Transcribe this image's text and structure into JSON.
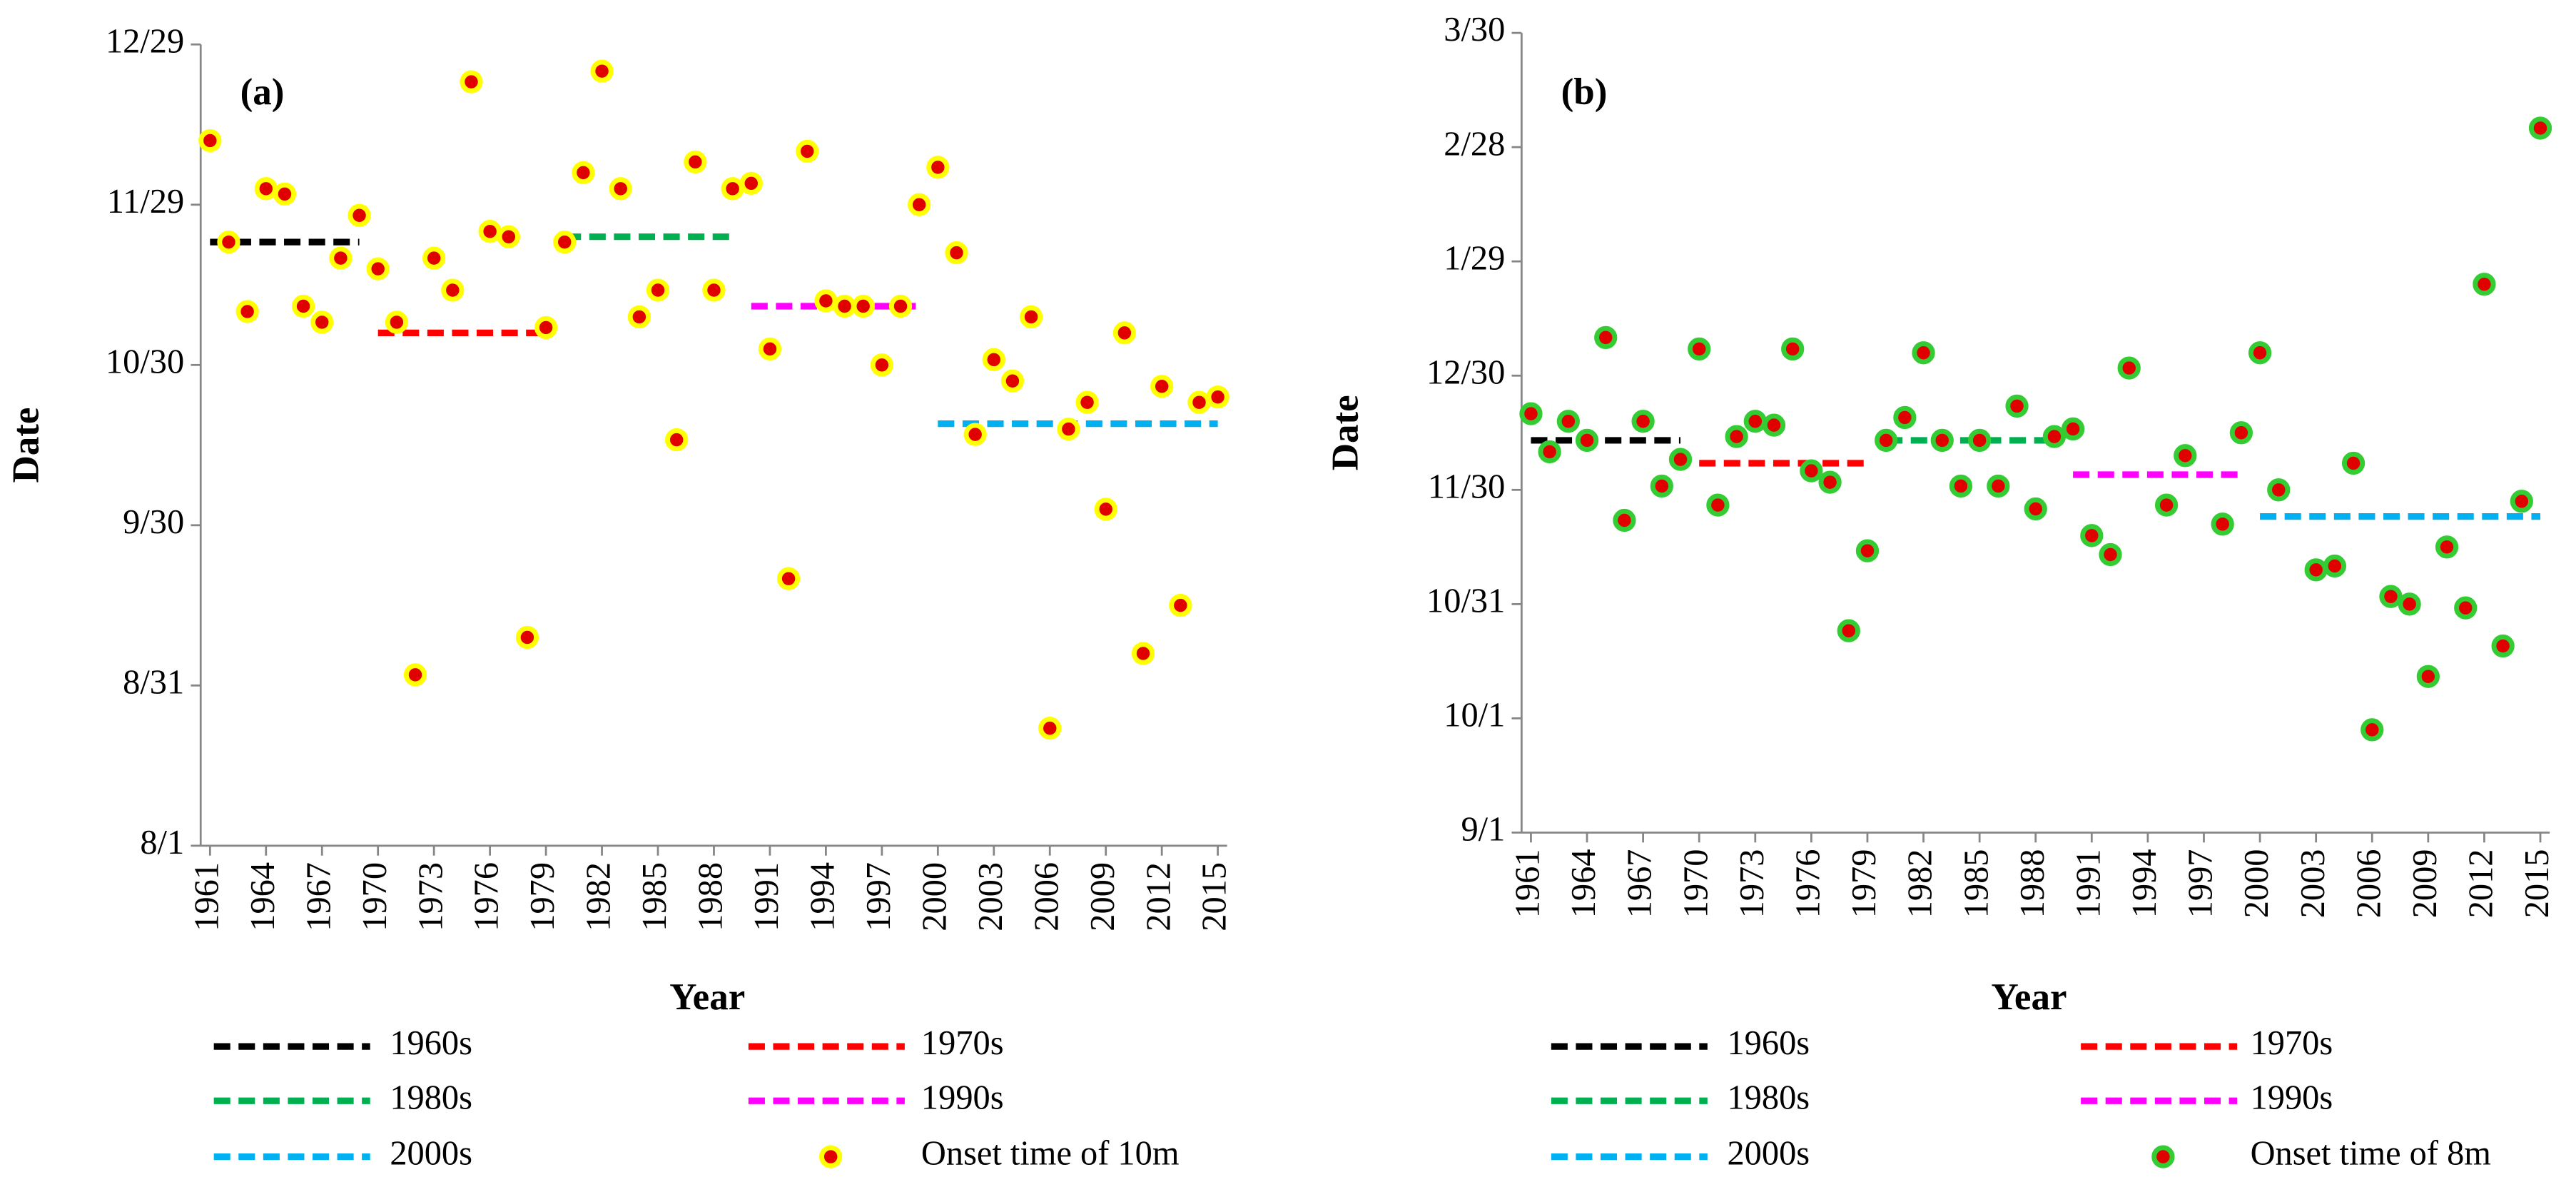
{
  "chart_data": [
    {
      "type": "scatter",
      "annotation": "(a)",
      "xlabel": "Year",
      "ylabel": "Date",
      "x": [
        1961,
        1962,
        1963,
        1964,
        1965,
        1966,
        1967,
        1968,
        1969,
        1970,
        1971,
        1972,
        1973,
        1974,
        1975,
        1976,
        1977,
        1978,
        1979,
        1980,
        1981,
        1982,
        1983,
        1984,
        1985,
        1986,
        1987,
        1988,
        1989,
        1990,
        1991,
        1992,
        1993,
        1994,
        1995,
        1996,
        1997,
        1998,
        1999,
        2000,
        2001,
        2002,
        2003,
        2004,
        2005,
        2006,
        2007,
        2008,
        2009,
        2010,
        2011,
        2012,
        2013,
        2014,
        2015
      ],
      "xlim": [
        1960.5,
        2015.5
      ],
      "xticks": [
        1961,
        1964,
        1967,
        1970,
        1973,
        1976,
        1979,
        1982,
        1985,
        1988,
        1991,
        1994,
        1997,
        2000,
        2003,
        2006,
        2009,
        2012,
        2015
      ],
      "ylim": [
        213,
        363
      ],
      "yticks": [
        {
          "value": 213,
          "label": "8/1"
        },
        {
          "value": 243,
          "label": "8/31"
        },
        {
          "value": 273,
          "label": "9/30"
        },
        {
          "value": 303,
          "label": "10/30"
        },
        {
          "value": 333,
          "label": "11/29"
        },
        {
          "value": 363,
          "label": "12/29"
        }
      ],
      "series": [
        {
          "name": "1960s",
          "mark": "dashed-line",
          "color": "#000000",
          "x": [
            1961,
            1969
          ],
          "values": [
            326,
            326
          ]
        },
        {
          "name": "1970s",
          "mark": "dashed-line",
          "color": "#ff0000",
          "x": [
            1970,
            1979
          ],
          "values": [
            309,
            309
          ]
        },
        {
          "name": "1980s",
          "mark": "dashed-line",
          "color": "#00b050",
          "x": [
            1980,
            1989
          ],
          "values": [
            327,
            327
          ]
        },
        {
          "name": "1990s",
          "mark": "dashed-line",
          "color": "#ff00ff",
          "x": [
            1990,
            1999
          ],
          "values": [
            314,
            314
          ]
        },
        {
          "name": "2000s",
          "mark": "dashed-line",
          "color": "#00b0f0",
          "x": [
            2000,
            2015
          ],
          "values": [
            292,
            292
          ]
        },
        {
          "name": "Onset time of 10m",
          "mark": "marker",
          "color": "#e00000",
          "edgecolor": "#ffff00",
          "values": [
            345,
            326,
            313,
            336,
            335,
            314,
            311,
            323,
            331,
            321,
            311,
            245,
            323,
            317,
            356,
            328,
            327,
            252,
            310,
            326,
            339,
            358,
            336,
            312,
            317,
            289,
            341,
            317,
            336,
            337,
            306,
            263,
            343,
            315,
            314,
            314,
            303,
            314,
            333,
            340,
            324,
            290,
            304,
            300,
            312,
            235,
            291,
            296,
            276,
            309,
            249,
            299,
            258,
            296,
            297
          ]
        }
      ]
    },
    {
      "type": "scatter",
      "annotation": "(b)",
      "xlabel": "Year",
      "ylabel": "Date",
      "x": [
        1961,
        1962,
        1963,
        1964,
        1965,
        1966,
        1967,
        1968,
        1969,
        1970,
        1971,
        1972,
        1973,
        1974,
        1975,
        1976,
        1977,
        1978,
        1979,
        1980,
        1981,
        1982,
        1983,
        1984,
        1985,
        1986,
        1987,
        1988,
        1989,
        1990,
        1991,
        1992,
        1993,
        1994,
        1995,
        1996,
        1997,
        1998,
        1999,
        2000,
        2001,
        2002,
        2003,
        2004,
        2005,
        2006,
        2007,
        2008,
        2009,
        2010,
        2011,
        2012,
        2013,
        2014,
        2015
      ],
      "xlim": [
        1960.5,
        2015.5
      ],
      "xticks": [
        1961,
        1964,
        1967,
        1970,
        1973,
        1976,
        1979,
        1982,
        1985,
        1988,
        1991,
        1994,
        1997,
        2000,
        2003,
        2006,
        2009,
        2012,
        2015
      ],
      "ylim": [
        244,
        454
      ],
      "yticks": [
        {
          "value": 244,
          "label": "9/1"
        },
        {
          "value": 274,
          "label": "10/1"
        },
        {
          "value": 304,
          "label": "10/31"
        },
        {
          "value": 334,
          "label": "11/30"
        },
        {
          "value": 364,
          "label": "12/30"
        },
        {
          "value": 394,
          "label": "1/29"
        },
        {
          "value": 424,
          "label": "2/28"
        },
        {
          "value": 454,
          "label": "3/30"
        }
      ],
      "series": [
        {
          "name": "1960s",
          "mark": "dashed-line",
          "color": "#000000",
          "x": [
            1961,
            1969
          ],
          "values": [
            347,
            347
          ]
        },
        {
          "name": "1970s",
          "mark": "dashed-line",
          "color": "#ff0000",
          "x": [
            1970,
            1979
          ],
          "values": [
            341,
            341
          ]
        },
        {
          "name": "1980s",
          "mark": "dashed-line",
          "color": "#00b050",
          "x": [
            1980,
            1989
          ],
          "values": [
            347,
            347
          ]
        },
        {
          "name": "1990s",
          "mark": "dashed-line",
          "color": "#ff00ff",
          "x": [
            1990,
            1999
          ],
          "values": [
            338,
            338
          ]
        },
        {
          "name": "2000s",
          "mark": "dashed-line",
          "color": "#00b0f0",
          "x": [
            2000,
            2015
          ],
          "values": [
            327,
            327
          ]
        },
        {
          "name": "Onset time of 8m",
          "mark": "marker",
          "color": "#e00000",
          "edgecolor": "#33cc33",
          "values": [
            354,
            344,
            352,
            347,
            374,
            326,
            352,
            335,
            342,
            371,
            330,
            348,
            352,
            351,
            371,
            339,
            336,
            297,
            318,
            347,
            353,
            370,
            347,
            335,
            347,
            335,
            356,
            329,
            348,
            350,
            322,
            317,
            366,
            null,
            330,
            343,
            null,
            325,
            349,
            370,
            334,
            null,
            313,
            314,
            341,
            271,
            306,
            304,
            285,
            319,
            303,
            388,
            293,
            331,
            429
          ]
        }
      ]
    }
  ]
}
